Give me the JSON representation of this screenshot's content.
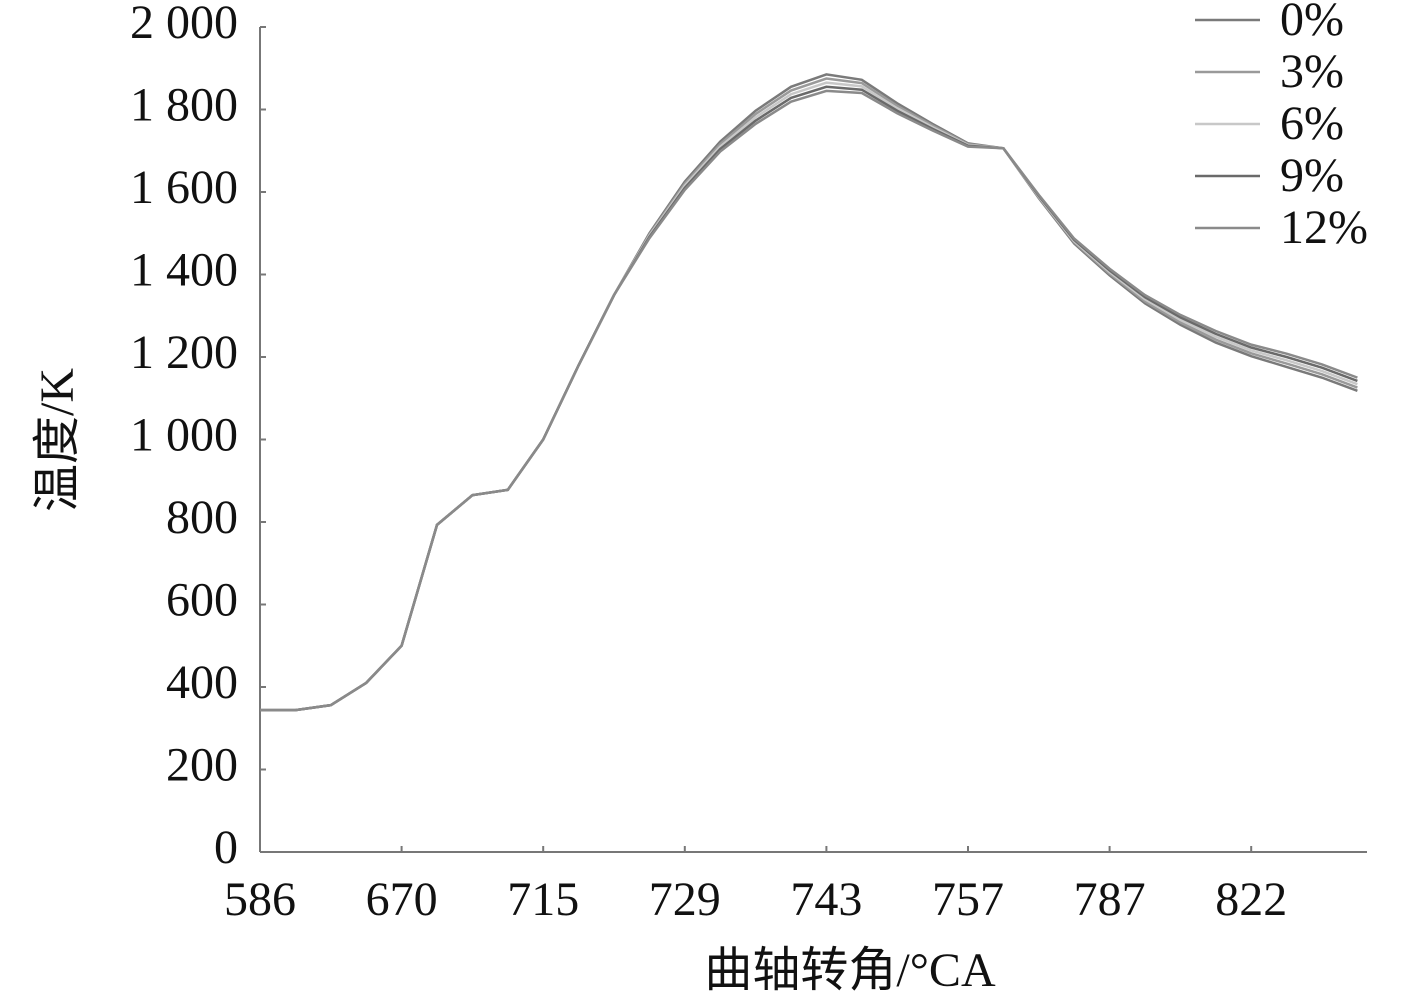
{
  "chart_data": {
    "type": "line",
    "x_label": "曲轴转角/°CA",
    "y_label": "温度/K",
    "categories": [
      "586",
      null,
      null,
      null,
      "670",
      null,
      null,
      null,
      "715",
      null,
      null,
      null,
      "729",
      null,
      null,
      null,
      "743",
      null,
      null,
      null,
      "757",
      null,
      null,
      null,
      "787",
      null,
      null,
      null,
      "822",
      null,
      null,
      null
    ],
    "ylim": [
      0,
      2000
    ],
    "yticks": [
      0,
      200,
      400,
      600,
      800,
      {
        "value": 1000,
        "label": "1 000"
      },
      {
        "value": 1200,
        "label": "1 200"
      },
      {
        "value": 1400,
        "label": "1 400"
      },
      {
        "value": 1600,
        "label": "1 600"
      },
      {
        "value": 1800,
        "label": "1 800"
      },
      {
        "value": 2000,
        "label": "2 000"
      }
    ],
    "legend": "top-right",
    "series": [
      {
        "name": "0%",
        "color": "#7a7a7a",
        "values": [
          344,
          344,
          356,
          410,
          500,
          793,
          865,
          878,
          1000,
          1180,
          1350,
          1500,
          1625,
          1722,
          1797,
          1855,
          1885,
          1872,
          1815,
          1765,
          1718,
          1706,
          1585,
          1475,
          1398,
          1330,
          1278,
          1235,
          1202,
          1176,
          1150,
          1118
        ]
      },
      {
        "name": "3%",
        "color": "#9a9a9a",
        "values": [
          344,
          344,
          356,
          410,
          500,
          793,
          865,
          878,
          1000,
          1180,
          1350,
          1497,
          1620,
          1716,
          1789,
          1846,
          1875,
          1864,
          1809,
          1761,
          1716,
          1706,
          1587,
          1478,
          1402,
          1335,
          1284,
          1242,
          1209,
          1184,
          1158,
          1126
        ]
      },
      {
        "name": "6%",
        "color": "#c8c8c8",
        "values": [
          344,
          344,
          356,
          410,
          500,
          793,
          865,
          878,
          1000,
          1180,
          1350,
          1494,
          1615,
          1710,
          1781,
          1837,
          1865,
          1856,
          1803,
          1757,
          1714,
          1706,
          1589,
          1481,
          1406,
          1340,
          1290,
          1249,
          1216,
          1192,
          1166,
          1134
        ]
      },
      {
        "name": "9%",
        "color": "#6a6a6a",
        "values": [
          344,
          344,
          356,
          410,
          500,
          793,
          865,
          878,
          1000,
          1180,
          1350,
          1491,
          1610,
          1704,
          1773,
          1828,
          1855,
          1848,
          1797,
          1753,
          1712,
          1706,
          1591,
          1484,
          1410,
          1345,
          1296,
          1256,
          1223,
          1200,
          1174,
          1142
        ]
      },
      {
        "name": "12%",
        "color": "#8a8a8a",
        "values": [
          344,
          344,
          356,
          410,
          500,
          793,
          865,
          878,
          1000,
          1180,
          1350,
          1488,
          1605,
          1698,
          1765,
          1819,
          1845,
          1840,
          1791,
          1749,
          1710,
          1706,
          1593,
          1487,
          1414,
          1350,
          1302,
          1263,
          1230,
          1208,
          1182,
          1150
        ]
      }
    ]
  }
}
